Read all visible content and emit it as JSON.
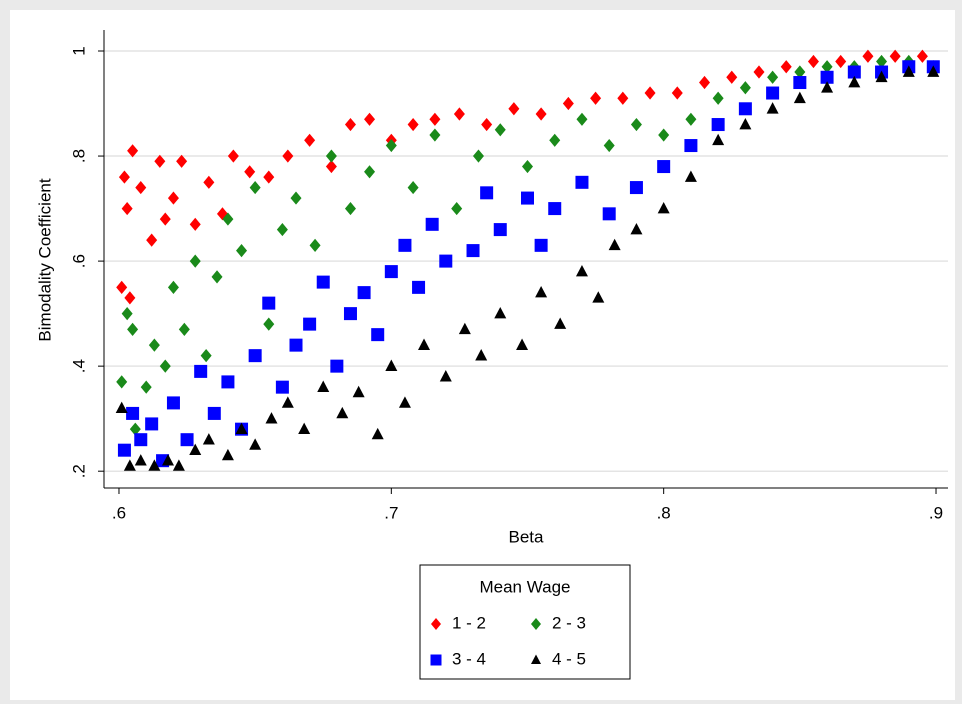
{
  "chart_data": {
    "type": "scatter",
    "x_label": "Beta",
    "y_label": "Bimodality Coefficient",
    "xlim": [
      0.5945,
      0.9044
    ],
    "ylim": [
      0.168,
      1.04
    ],
    "xticks": [
      {
        "value": 0.6,
        "label": ".6"
      },
      {
        "value": 0.7,
        "label": ".7"
      },
      {
        "value": 0.8,
        "label": ".8"
      },
      {
        "value": 0.9,
        "label": ".9"
      }
    ],
    "yticks": [
      {
        "value": 0.2,
        "label": ".2"
      },
      {
        "value": 0.4,
        "label": ".4"
      },
      {
        "value": 0.6,
        "label": ".6"
      },
      {
        "value": 0.8,
        "label": ".8"
      },
      1
    ],
    "grid": true,
    "legend_title": "Mean Wage",
    "legend_position": "bottom",
    "series": [
      {
        "name": "1 - 2",
        "color": "#ff0000",
        "marker": "diamond",
        "x": [
          0.601,
          0.602,
          0.603,
          0.604,
          0.605,
          0.608,
          0.612,
          0.615,
          0.617,
          0.62,
          0.623,
          0.628,
          0.633,
          0.638,
          0.642,
          0.648,
          0.655,
          0.662,
          0.67,
          0.678,
          0.685,
          0.692,
          0.7,
          0.708,
          0.716,
          0.725,
          0.735,
          0.745,
          0.755,
          0.765,
          0.775,
          0.785,
          0.795,
          0.805,
          0.815,
          0.825,
          0.835,
          0.845,
          0.855,
          0.865,
          0.875,
          0.885,
          0.895
        ],
        "values": [
          0.55,
          0.76,
          0.7,
          0.53,
          0.81,
          0.74,
          0.64,
          0.79,
          0.68,
          0.72,
          0.79,
          0.67,
          0.75,
          0.69,
          0.8,
          0.77,
          0.76,
          0.8,
          0.83,
          0.78,
          0.86,
          0.87,
          0.83,
          0.86,
          0.87,
          0.88,
          0.86,
          0.89,
          0.88,
          0.9,
          0.91,
          0.91,
          0.92,
          0.92,
          0.94,
          0.95,
          0.96,
          0.97,
          0.98,
          0.98,
          0.99,
          0.99,
          0.99
        ]
      },
      {
        "name": "2 - 3",
        "color": "#1a8a1a",
        "marker": "diamond",
        "x": [
          0.601,
          0.603,
          0.605,
          0.606,
          0.61,
          0.613,
          0.617,
          0.62,
          0.624,
          0.628,
          0.632,
          0.636,
          0.64,
          0.645,
          0.65,
          0.655,
          0.66,
          0.665,
          0.672,
          0.678,
          0.685,
          0.692,
          0.7,
          0.708,
          0.716,
          0.724,
          0.732,
          0.74,
          0.75,
          0.76,
          0.77,
          0.78,
          0.79,
          0.8,
          0.81,
          0.82,
          0.83,
          0.84,
          0.85,
          0.86,
          0.87,
          0.88,
          0.89,
          0.899
        ],
        "values": [
          0.37,
          0.5,
          0.47,
          0.28,
          0.36,
          0.44,
          0.4,
          0.55,
          0.47,
          0.6,
          0.42,
          0.57,
          0.68,
          0.62,
          0.74,
          0.48,
          0.66,
          0.72,
          0.63,
          0.8,
          0.7,
          0.77,
          0.82,
          0.74,
          0.84,
          0.7,
          0.8,
          0.85,
          0.78,
          0.83,
          0.87,
          0.82,
          0.86,
          0.84,
          0.87,
          0.91,
          0.93,
          0.95,
          0.96,
          0.97,
          0.97,
          0.98,
          0.98,
          0.97
        ]
      },
      {
        "name": "3 - 4",
        "color": "#0000ff",
        "marker": "square",
        "x": [
          0.602,
          0.605,
          0.608,
          0.612,
          0.616,
          0.62,
          0.625,
          0.63,
          0.635,
          0.64,
          0.645,
          0.65,
          0.655,
          0.66,
          0.665,
          0.67,
          0.675,
          0.68,
          0.685,
          0.69,
          0.695,
          0.7,
          0.705,
          0.71,
          0.715,
          0.72,
          0.73,
          0.735,
          0.74,
          0.75,
          0.755,
          0.76,
          0.77,
          0.78,
          0.79,
          0.8,
          0.81,
          0.82,
          0.83,
          0.84,
          0.85,
          0.86,
          0.87,
          0.88,
          0.89,
          0.899
        ],
        "values": [
          0.24,
          0.31,
          0.26,
          0.29,
          0.22,
          0.33,
          0.26,
          0.39,
          0.31,
          0.37,
          0.28,
          0.42,
          0.52,
          0.36,
          0.44,
          0.48,
          0.56,
          0.4,
          0.5,
          0.54,
          0.46,
          0.58,
          0.63,
          0.55,
          0.67,
          0.6,
          0.62,
          0.73,
          0.66,
          0.72,
          0.63,
          0.7,
          0.75,
          0.69,
          0.74,
          0.78,
          0.82,
          0.86,
          0.89,
          0.92,
          0.94,
          0.95,
          0.96,
          0.96,
          0.97,
          0.97
        ]
      },
      {
        "name": "4 - 5",
        "color": "#000000",
        "marker": "triangle",
        "x": [
          0.601,
          0.604,
          0.608,
          0.613,
          0.618,
          0.622,
          0.628,
          0.633,
          0.64,
          0.645,
          0.65,
          0.656,
          0.662,
          0.668,
          0.675,
          0.682,
          0.688,
          0.695,
          0.7,
          0.705,
          0.712,
          0.72,
          0.727,
          0.733,
          0.74,
          0.748,
          0.755,
          0.762,
          0.77,
          0.776,
          0.782,
          0.79,
          0.8,
          0.81,
          0.82,
          0.83,
          0.84,
          0.85,
          0.86,
          0.87,
          0.88,
          0.89,
          0.899
        ],
        "values": [
          0.32,
          0.21,
          0.22,
          0.21,
          0.22,
          0.21,
          0.24,
          0.26,
          0.23,
          0.28,
          0.25,
          0.3,
          0.33,
          0.28,
          0.36,
          0.31,
          0.35,
          0.27,
          0.4,
          0.33,
          0.44,
          0.38,
          0.47,
          0.42,
          0.5,
          0.44,
          0.54,
          0.48,
          0.58,
          0.53,
          0.63,
          0.66,
          0.7,
          0.76,
          0.83,
          0.86,
          0.89,
          0.91,
          0.93,
          0.94,
          0.95,
          0.96,
          0.96
        ]
      }
    ]
  }
}
